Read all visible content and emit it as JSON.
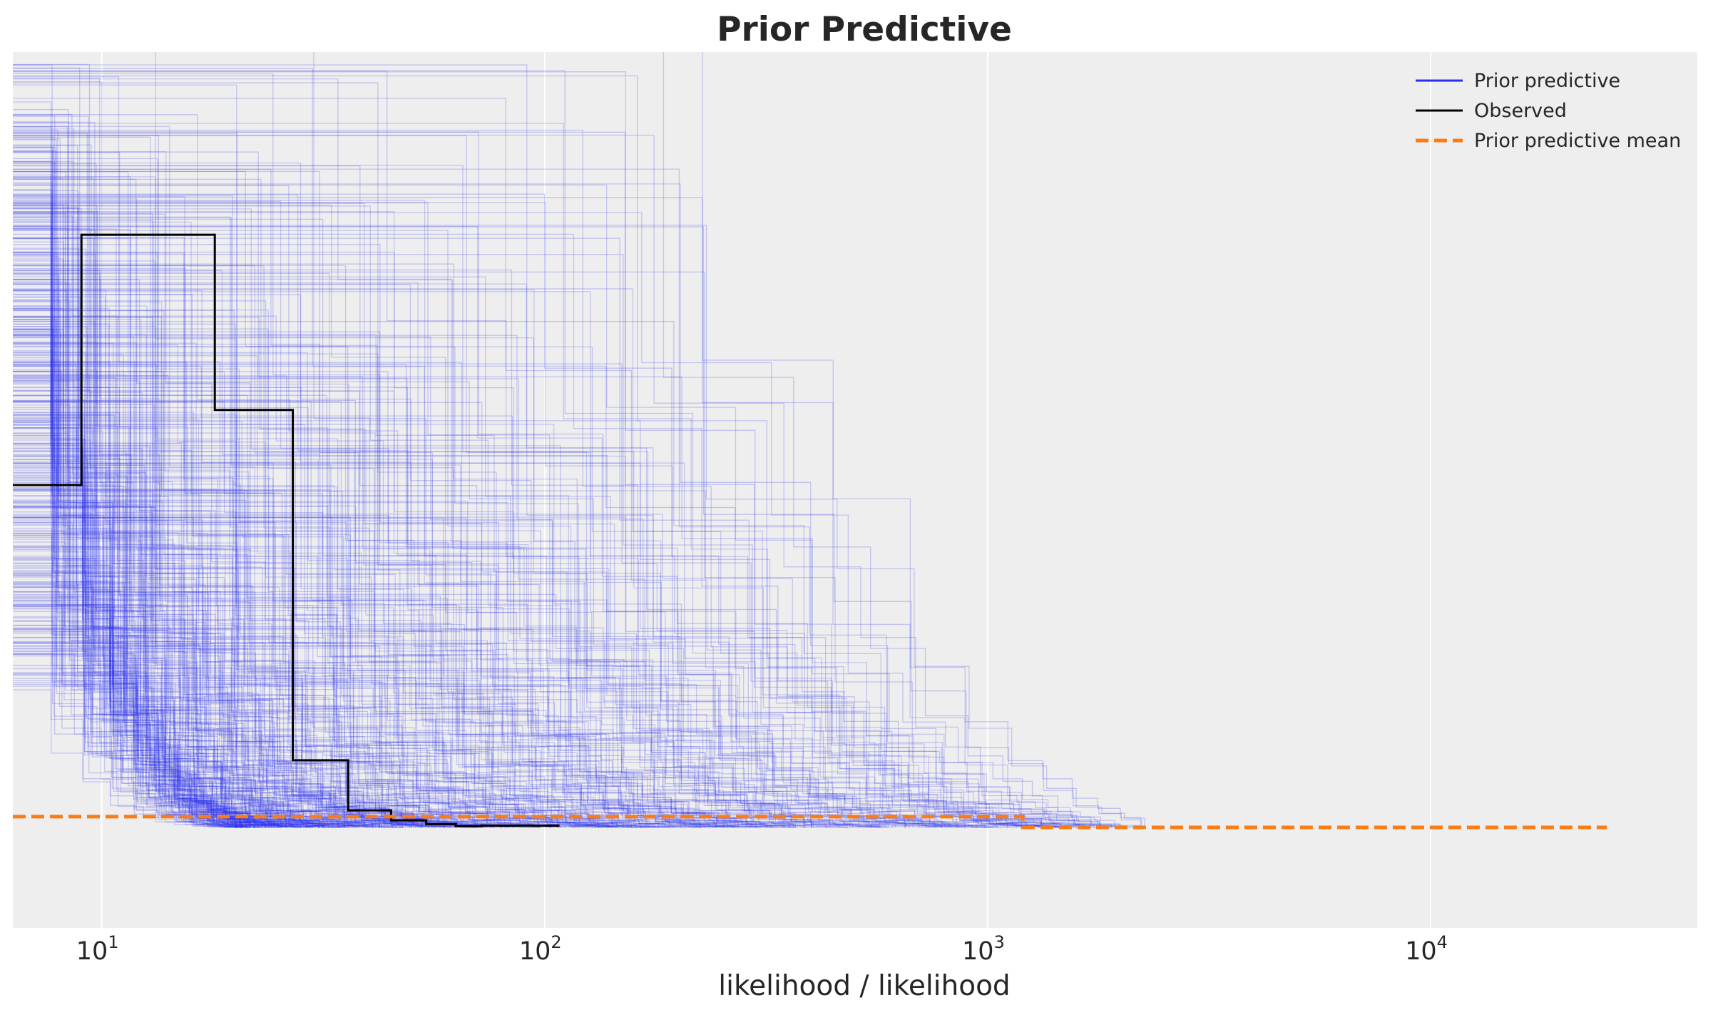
{
  "chart_data": {
    "type": "line",
    "title": "Prior Predictive",
    "xlabel": "likelihood / likelihood",
    "ylabel": "",
    "x_scale": "log",
    "xlim": [
      6.3,
      40000
    ],
    "ylim": [
      -0.0004,
      0.0031
    ],
    "grid": true,
    "y_ticks_visible": false,
    "x_ticks": [
      {
        "value": 10,
        "base": "10",
        "exp": "1"
      },
      {
        "value": 100,
        "base": "10",
        "exp": "2"
      },
      {
        "value": 1000,
        "base": "10",
        "exp": "3"
      },
      {
        "value": 10000,
        "base": "10",
        "exp": "4"
      }
    ],
    "legend": {
      "position": "upper right",
      "entries": [
        {
          "label": "Prior predictive",
          "color": "#2a2eec",
          "style": "solid"
        },
        {
          "label": "Observed",
          "color": "#000000",
          "style": "solid"
        },
        {
          "label": "Prior predictive mean",
          "color": "#fa7c17",
          "style": "dashed"
        }
      ]
    },
    "colors": {
      "prior_predictive": "#2a2eec",
      "observed": "#000000",
      "prior_mean": "#fa7c17",
      "background": "#eeeeee",
      "grid": "#ffffff"
    },
    "prior_predictive_draws": {
      "count": 500,
      "x_min": 6.3,
      "x_range": [
        20,
        2300
      ],
      "first_bin_height_range": [
        0.0006,
        0.00295
      ]
    },
    "series": [
      {
        "name": "Observed",
        "step_x": [
          6.3,
          9,
          18,
          27,
          36,
          45,
          54,
          63,
          72,
          108
        ],
        "step_y": [
          0.00137,
          0.00237,
          0.00167,
          0.00027,
          7e-05,
          3e-05,
          1.5e-05,
          7e-06,
          9e-06,
          9e-06
        ]
      },
      {
        "name": "Prior predictive mean",
        "step_x": [
          6.3,
          1200,
          25000
        ],
        "step_y": [
          4.5e-05,
          2e-06,
          2e-06
        ]
      }
    ]
  }
}
